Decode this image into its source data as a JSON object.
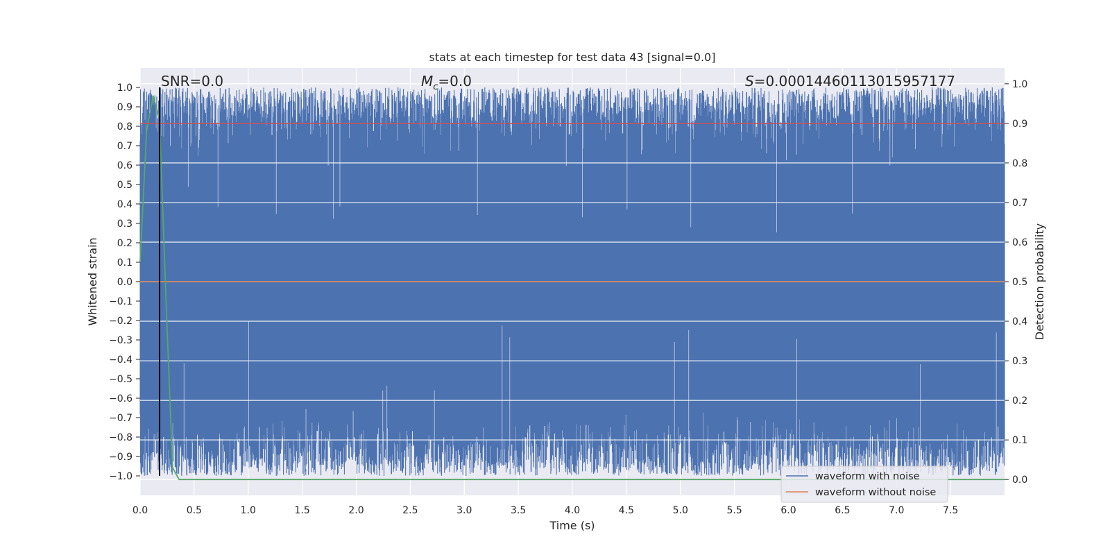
{
  "chart_data": {
    "type": "line",
    "title": "stats at each timestep for test data 43 [signal=0.0]",
    "xlabel": "Time (s)",
    "ylabel": "Whitened strain",
    "y2label": "Detection probability",
    "xlim": [
      0.0,
      8.0
    ],
    "ylim": [
      -1.1,
      1.1
    ],
    "y2lim": [
      -0.04,
      1.04
    ],
    "x_ticks": [
      "0.0",
      "0.5",
      "1.0",
      "1.5",
      "2.0",
      "2.5",
      "3.0",
      "3.5",
      "4.0",
      "4.5",
      "5.0",
      "5.5",
      "6.0",
      "6.5",
      "7.0",
      "7.5"
    ],
    "y_ticks": [
      "1.0",
      "0.9",
      "0.8",
      "0.7",
      "0.6",
      "0.5",
      "0.4",
      "0.3",
      "0.2",
      "0.1",
      "0.0",
      "−0.1",
      "−0.2",
      "−0.3",
      "−0.4",
      "−0.5",
      "−0.6",
      "−0.7",
      "−0.8",
      "−0.9",
      "−1.0"
    ],
    "y2_ticks": [
      "1.0",
      "0.9",
      "0.8",
      "0.7",
      "0.6",
      "0.5",
      "0.4",
      "0.3",
      "0.2",
      "0.1",
      "0.0"
    ],
    "grid": true,
    "legend_position": "bottom-right",
    "annotations": {
      "snr": "SNR=0.0",
      "mc_symbol": "M",
      "mc_subscript": "c",
      "mc_value": "=0.0",
      "s_symbol": "S",
      "s_value": "=0.00014460113015957177"
    },
    "series": [
      {
        "name": "waveform with noise",
        "color": "#4c72b0",
        "style": "dense noise filling approx. [-1.0, 1.0]"
      },
      {
        "name": "waveform without noise",
        "color": "#dd8452",
        "x": [
          0.0,
          8.0
        ],
        "y": [
          0.0,
          0.0
        ]
      },
      {
        "color": "#55a868",
        "axis": "right",
        "x": [
          0.0,
          0.06,
          0.12,
          0.18,
          0.24,
          0.3,
          0.36,
          8.0
        ],
        "y": [
          0.55,
          0.88,
          0.97,
          0.91,
          0.45,
          0.03,
          0.0,
          0.0
        ]
      },
      {
        "color": "#c44e52",
        "axis": "right",
        "x": [
          0.0,
          8.0
        ],
        "y": [
          0.9,
          0.9
        ]
      },
      {
        "color": "#000000",
        "axis": "left",
        "vertical_at_x": 0.18,
        "y": [
          -1.0,
          1.0
        ]
      }
    ]
  }
}
